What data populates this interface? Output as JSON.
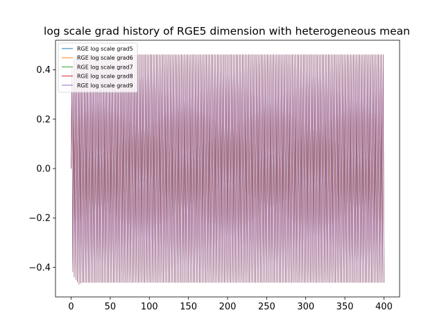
{
  "chart_data": {
    "type": "line",
    "title": "log scale grad history of RGE5 dimension with heterogeneous mean",
    "xlabel": "",
    "ylabel": "",
    "xlim": [
      -20,
      420
    ],
    "ylim": [
      -0.52,
      0.52
    ],
    "xticks": [
      0,
      50,
      100,
      150,
      200,
      250,
      300,
      350,
      400
    ],
    "xtick_labels": [
      "0",
      "50",
      "100",
      "150",
      "200",
      "250",
      "300",
      "350",
      "400"
    ],
    "yticks": [
      -0.4,
      -0.2,
      0.0,
      0.2,
      0.4
    ],
    "ytick_labels": [
      "−0.4",
      "−0.2",
      "0.0",
      "0.2",
      "0.4"
    ],
    "grid": false,
    "legend_position": "top-left",
    "x_range": [
      0,
      400
    ],
    "pattern": "alternating sign every step after a short transient",
    "amplitude": 0.462,
    "initial_values": [
      0.0,
      0.41,
      -0.42,
      0.44,
      -0.44,
      0.45,
      -0.45,
      0.455,
      -0.46,
      0.46,
      -0.47,
      0.465,
      -0.465
    ],
    "series": [
      {
        "name": "RGE log scale grad5",
        "color": "#1f77b4"
      },
      {
        "name": "RGE log scale grad6",
        "color": "#ff7f0e"
      },
      {
        "name": "RGE log scale grad7",
        "color": "#2ca02c"
      },
      {
        "name": "RGE log scale grad8",
        "color": "#d62728"
      },
      {
        "name": "RGE log scale grad9",
        "color": "#9467bd"
      }
    ]
  }
}
